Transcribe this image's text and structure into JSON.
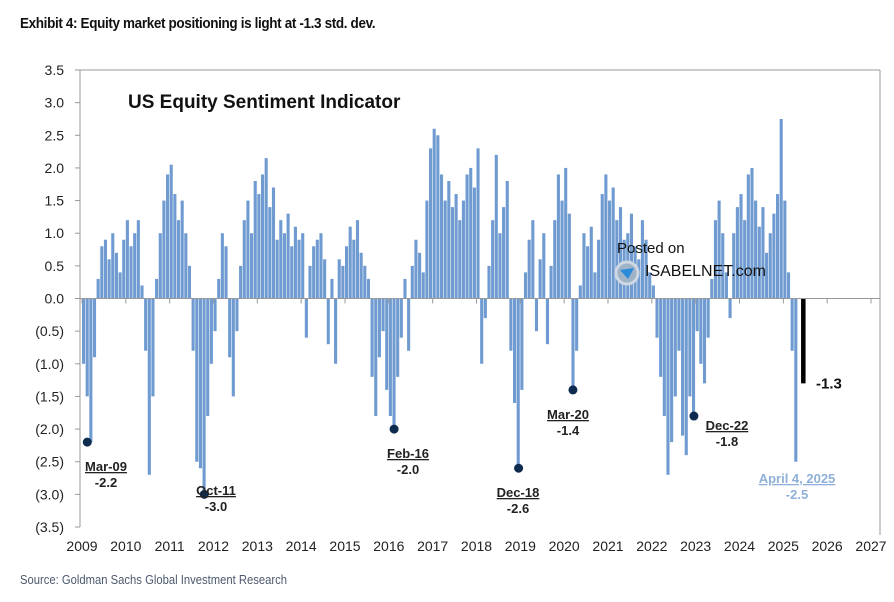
{
  "header": {
    "title": "Exhibit 4: Equity market positioning is light at -1.3 std. dev."
  },
  "footer": {
    "source": "Source: Goldman Sachs Global Investment Research"
  },
  "watermark": {
    "line1": "Posted on",
    "line2": "ISABELNET.com"
  },
  "chart_data": {
    "type": "bar",
    "title": "US Equity Sentiment Indicator",
    "xlabel": "",
    "ylabel": "",
    "ylim": [
      -3.5,
      3.5
    ],
    "xlim": [
      2009,
      2027
    ],
    "x_ticks": [
      "2009",
      "2010",
      "2011",
      "2012",
      "2013",
      "2014",
      "2015",
      "2016",
      "2017",
      "2018",
      "2019",
      "2020",
      "2021",
      "2022",
      "2023",
      "2024",
      "2025",
      "2026",
      "2027"
    ],
    "y_ticks": [
      "3.5",
      "3.0",
      "2.5",
      "2.0",
      "1.5",
      "1.0",
      "0.5",
      "0.0",
      "(0.5)",
      "(1.0)",
      "(1.5)",
      "(2.0)",
      "(2.5)",
      "(3.0)",
      "(3.5)"
    ],
    "grid": false,
    "bar_color": "#6f9bd1",
    "start": 2009.0,
    "step_years": 0.08333,
    "values": [
      -1.0,
      -1.5,
      -2.2,
      -0.9,
      0.3,
      0.8,
      0.9,
      0.6,
      1.0,
      0.7,
      0.4,
      0.9,
      1.2,
      0.8,
      1.0,
      1.2,
      0.2,
      -0.8,
      -2.7,
      -1.5,
      0.3,
      1.0,
      1.5,
      1.9,
      2.05,
      1.6,
      1.2,
      1.5,
      1.0,
      0.5,
      -0.8,
      -2.5,
      -2.6,
      -3.0,
      -1.8,
      -1.0,
      -0.5,
      0.3,
      1.0,
      0.8,
      -0.9,
      -1.5,
      -0.5,
      0.5,
      1.2,
      1.5,
      1.0,
      1.8,
      1.6,
      1.9,
      2.15,
      1.4,
      1.7,
      0.9,
      1.2,
      1.0,
      1.3,
      0.8,
      1.1,
      0.9,
      1.0,
      -0.6,
      0.5,
      0.8,
      0.9,
      1.0,
      0.6,
      -0.7,
      0.3,
      -1.0,
      0.6,
      0.5,
      0.8,
      1.1,
      0.9,
      1.2,
      0.7,
      0.5,
      0.3,
      -1.2,
      -1.8,
      -0.9,
      -0.5,
      -1.4,
      -1.8,
      -2.0,
      -1.2,
      -0.6,
      0.3,
      -0.8,
      0.5,
      0.9,
      0.7,
      0.4,
      1.5,
      2.3,
      2.6,
      2.5,
      1.9,
      1.5,
      1.8,
      1.4,
      1.6,
      1.2,
      1.5,
      1.9,
      2.0,
      1.7,
      2.3,
      -1.0,
      -0.3,
      0.5,
      1.2,
      2.2,
      1.0,
      1.4,
      1.8,
      -0.8,
      -1.6,
      -2.6,
      -1.4,
      0.4,
      0.9,
      1.2,
      -0.5,
      0.6,
      1.0,
      -0.7,
      0.5,
      1.2,
      1.9,
      1.5,
      2.0,
      1.3,
      -1.4,
      -0.8,
      0.2,
      1.0,
      0.8,
      1.1,
      0.4,
      0.9,
      1.6,
      1.9,
      1.5,
      1.7,
      1.2,
      1.4,
      0.9,
      1.0,
      1.3,
      0.8,
      0.6,
      1.2,
      0.9,
      0.4,
      0.2,
      -0.6,
      -1.2,
      -1.8,
      -2.7,
      -2.2,
      -1.5,
      -0.8,
      -2.1,
      -2.4,
      -1.5,
      -1.8,
      -0.5,
      -1.0,
      -1.3,
      -0.6,
      0.3,
      1.2,
      1.5,
      1.0,
      0.4,
      -0.3,
      1.0,
      1.4,
      1.6,
      1.2,
      1.9,
      2.0,
      1.5,
      1.1,
      1.4,
      0.7,
      1.0,
      1.3,
      1.6,
      2.75,
      1.5,
      0.4,
      -0.8,
      -2.5
    ],
    "latest": {
      "x": 2025.45,
      "value": -1.3,
      "label": "-1.3",
      "color": "#000000"
    },
    "annotations": [
      {
        "label": "Mar-09",
        "value_label": "-2.2",
        "x": 2009.12,
        "y": -2.2
      },
      {
        "label": "Oct-11",
        "value_label": "-3.0",
        "x": 2011.79,
        "y": -3.0
      },
      {
        "label": "Feb-16",
        "value_label": "-2.0",
        "x": 2016.12,
        "y": -2.0
      },
      {
        "label": "Dec-18",
        "value_label": "-2.6",
        "x": 2018.96,
        "y": -2.6
      },
      {
        "label": "Mar-20",
        "value_label": "-1.4",
        "x": 2020.2,
        "y": -1.4
      },
      {
        "label": "Dec-22",
        "value_label": "-1.8",
        "x": 2022.96,
        "y": -1.8
      },
      {
        "label": "April 4, 2025",
        "value_label": "-2.5",
        "x": 2025.27,
        "y": -2.5,
        "color": "#8fb0d8",
        "no_dot": true
      }
    ]
  }
}
